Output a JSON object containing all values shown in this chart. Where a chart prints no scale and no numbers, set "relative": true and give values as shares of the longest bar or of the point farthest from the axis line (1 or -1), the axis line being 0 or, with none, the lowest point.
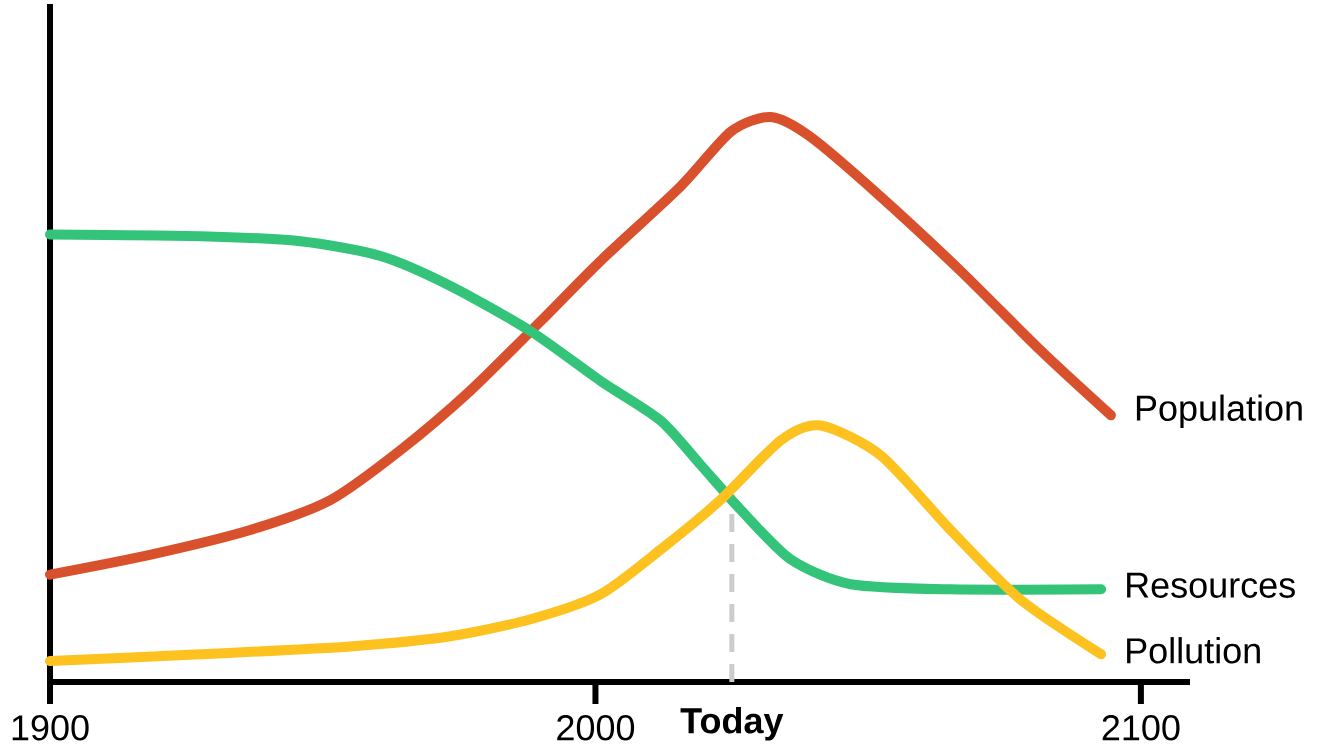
{
  "chart_data": {
    "type": "line",
    "relative": true,
    "xlim": [
      1900,
      2109
    ],
    "xticks": [
      1900,
      2000,
      2100
    ],
    "series": [
      {
        "name": "Population",
        "color": "#d9512c",
        "x": [
          1900,
          1918.3,
          1936.7,
          1951.4,
          1964.2,
          1977.1,
          1990,
          2000.9,
          2015.6,
          2024.8,
          2032.1,
          2039.4,
          2052.3,
          2067,
          2081.7,
          2094.5
        ],
        "values": [
          0.19,
          0.225,
          0.269,
          0.322,
          0.41,
          0.516,
          0.639,
          0.745,
          0.877,
          0.974,
          1.0,
          0.965,
          0.859,
          0.727,
          0.586,
          0.472
        ]
      },
      {
        "name": "Resources",
        "color": "#33c47a",
        "x": [
          1900,
          1927.5,
          1945.9,
          1960.6,
          1973.4,
          1988.1,
          2000.9,
          2011.9,
          2019.3,
          2026.6,
          2035.8,
          2046.8,
          2065.1,
          2092.7
        ],
        "values": [
          0.792,
          0.789,
          0.78,
          0.754,
          0.701,
          0.621,
          0.533,
          0.463,
          0.384,
          0.305,
          0.217,
          0.173,
          0.164,
          0.164
        ]
      },
      {
        "name": "Pollution",
        "color": "#fdc220",
        "x": [
          1900,
          1927.5,
          1955,
          1973.4,
          1988.1,
          2000.9,
          2011.9,
          2022.9,
          2034,
          2041.3,
          2052.3,
          2065.1,
          2077.9,
          2092.7
        ],
        "values": [
          0.037,
          0.049,
          0.063,
          0.081,
          0.111,
          0.155,
          0.234,
          0.322,
          0.428,
          0.454,
          0.401,
          0.269,
          0.146,
          0.049
        ]
      }
    ],
    "ref_lines": [
      {
        "axis": "x",
        "value": 2025,
        "label": "Today",
        "color": "#cccccc",
        "line_style": "dashed"
      }
    ]
  }
}
